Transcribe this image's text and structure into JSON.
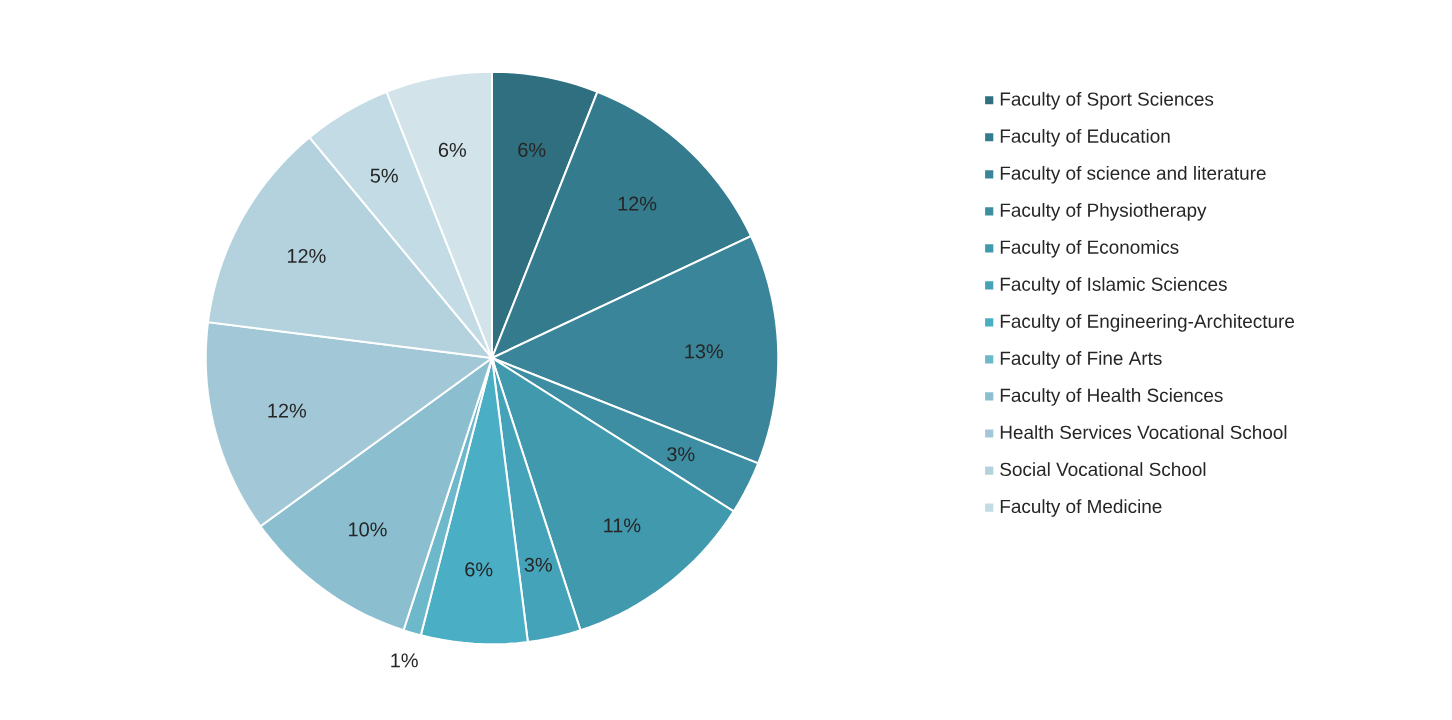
{
  "chart_data": {
    "type": "pie",
    "legend": "right",
    "categories": [
      "Faculty of Sport Sciences",
      "Faculty of Education",
      "Faculty of science and literature",
      "Faculty of Physiotherapy",
      "Faculty of Economics",
      "Faculty of Islamic Sciences",
      "Faculty of Engineering-Architecture",
      "Faculty of Fine Arts",
      "Faculty of Health Sciences",
      "Health Services Vocational School",
      "Social Vocational School",
      "Faculty of Medicine",
      null
    ],
    "values": [
      6,
      12,
      13,
      3,
      11,
      3,
      6,
      1,
      10,
      12,
      12,
      5,
      6
    ],
    "value_labels": [
      "6%",
      "12%",
      "13%",
      "3%",
      "11%",
      "3%",
      "6%",
      "1%",
      "10%",
      "12%",
      "12%",
      "5%",
      "6%"
    ],
    "colors": [
      "#2f6f80",
      "#347b8e",
      "#3a8599",
      "#3d8ea3",
      "#4199ae",
      "#45a3b9",
      "#4aaec4",
      "#6db8cb",
      "#8bbfd0",
      "#a2c8d8",
      "#b3d2de",
      "#c3dbe4",
      "#d2e3ea"
    ]
  }
}
